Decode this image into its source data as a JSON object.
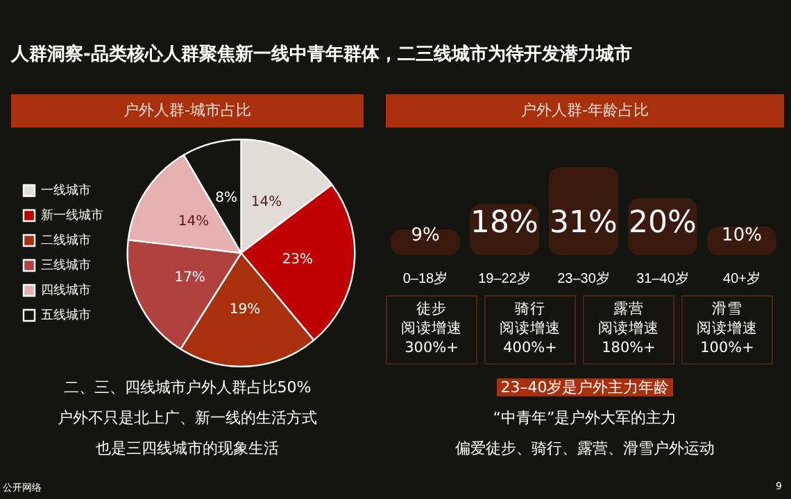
{
  "chart_data": [
    {
      "type": "pie",
      "title": "人群洞察-品类核心人群聚焦新一线中青年群体，二三线城市为待开发潜力城市",
      "subtitle": "户外人群-城市占比",
      "categories": [
        "一线城市",
        "新一线城市",
        "二线城市",
        "三线城市",
        "四线城市",
        "五线城市"
      ],
      "values": [
        14,
        23,
        19,
        17,
        14,
        8
      ],
      "colors": [
        "#e0dcd8",
        "#c00000",
        "#a8300c",
        "#b0413e",
        "#e6b0b0",
        "#141510"
      ],
      "value_labels": [
        "14%",
        "23%",
        "19%",
        "17%",
        "14%",
        "8%"
      ],
      "legend": "left",
      "annotations": [
        "二、三、四线城市户外人群占比50%",
        "户外不只是北上广、新一线的生活方式",
        "也是三四线城市的现象生活"
      ]
    },
    {
      "type": "bar",
      "subtitle": "户外人群-年龄占比",
      "categories": [
        "0–18岁",
        "19–22岁",
        "23–30岁",
        "31–40岁",
        "40+岁"
      ],
      "values": [
        9,
        18,
        31,
        20,
        10
      ],
      "color": "#3a1a0e",
      "value_labels": [
        "9%",
        "18%",
        "31%",
        "20%",
        "10%"
      ],
      "annotations": [
        "徒步",
        "阅读增速",
        "300%+",
        "骑行",
        "阅读增速",
        "400%+",
        "露营",
        "阅读增速",
        "180%+",
        "滑雪",
        "阅读增速",
        "100%+",
        "23–40岁是户外主力年龄",
        "“中青年”是户外大军的主力",
        "偏爱徒步、骑行、露营、滑雪户外运动",
        "公开网络",
        "9"
      ]
    }
  ]
}
